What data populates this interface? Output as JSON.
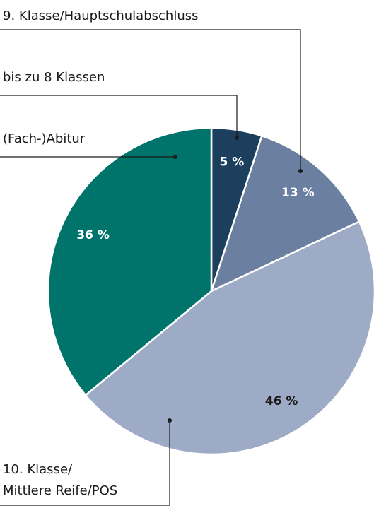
{
  "chart_data": {
    "type": "pie",
    "categories": [
      "bis zu 8 Klassen",
      "9. Klasse/Hauptschulabschluss",
      "10. Klasse/\nMittlere Reife/POS",
      "(Fach-)Abitur"
    ],
    "values": [
      5,
      13,
      46,
      36
    ],
    "value_labels": [
      "5 %",
      "13 %",
      "46 %",
      "36 %"
    ],
    "colors": [
      "#1c3f5e",
      "#6b7fa0",
      "#9eabc6",
      "#00736a"
    ]
  }
}
